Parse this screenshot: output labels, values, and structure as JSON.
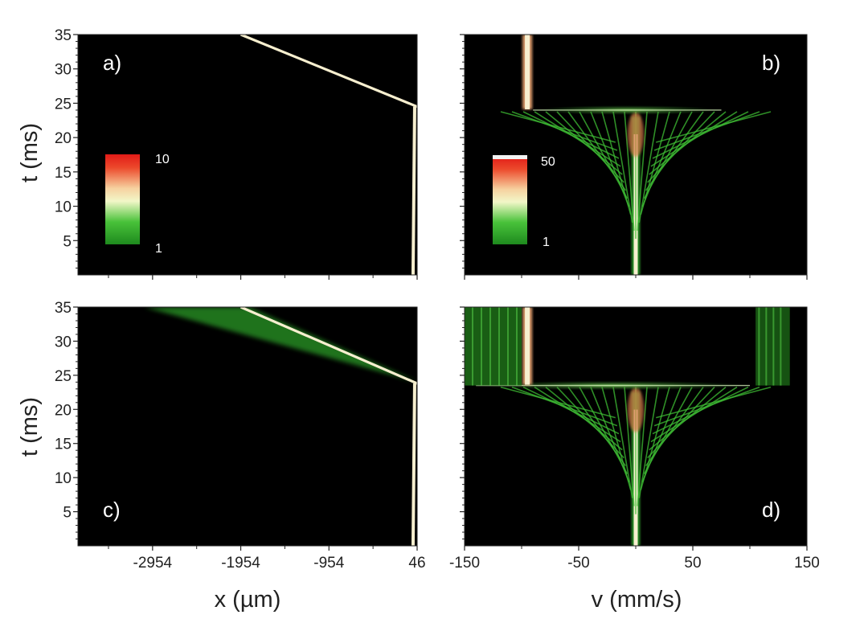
{
  "figure": {
    "ylabel": "t (ms)",
    "xlabel_left": "x (µm)",
    "xlabel_right": "v (mm/s)"
  },
  "colors": {
    "background": "#000000",
    "low": "#2fa82a",
    "mid": "#f4f4d0",
    "high": "#e8281c",
    "trace": "#f7efcf"
  },
  "chart_data": [
    {
      "panel": "a)",
      "type": "heatmap",
      "xlabel": "x (µm)",
      "ylabel": "t (ms)",
      "xlim": [
        -3800,
        46
      ],
      "ylim": [
        0,
        35
      ],
      "xticks": [
        -2954,
        -1954,
        -954,
        46
      ],
      "yticks": [
        5,
        10,
        15,
        20,
        25,
        30,
        35
      ],
      "colorbar": {
        "min": "1",
        "max": "10"
      },
      "features": {
        "static_trace_x": 0,
        "transition_t": 24.5,
        "drift_line": [
          [
            46,
            24.5
          ],
          [
            -1954,
            35
          ]
        ]
      }
    },
    {
      "panel": "b)",
      "type": "heatmap",
      "xlabel": "v (mm/s)",
      "ylabel": "t (ms)",
      "xlim": [
        -150,
        150
      ],
      "ylim": [
        0,
        35
      ],
      "xticks": [
        -150,
        -50,
        50,
        150
      ],
      "yticks": [
        5,
        10,
        15,
        20,
        25,
        30,
        35
      ],
      "colorbar": {
        "min": "1",
        "max": "50"
      },
      "features": {
        "trace_v": 0,
        "spread_peak_t": 24,
        "spread_range": [
          -90,
          75
        ],
        "jump_v": -95
      }
    },
    {
      "panel": "c)",
      "type": "heatmap",
      "xlabel": "x (µm)",
      "ylabel": "t (ms)",
      "xlim": [
        -3800,
        46
      ],
      "ylim": [
        0,
        35
      ],
      "xticks": [
        -2954,
        -1954,
        -954,
        46
      ],
      "yticks": [
        5,
        10,
        15,
        20,
        25,
        30,
        35
      ],
      "features": {
        "static_trace_x": 0,
        "transition_t": 23.8,
        "drift_line": [
          [
            46,
            23.8
          ],
          [
            -1954,
            35
          ]
        ]
      }
    },
    {
      "panel": "d)",
      "type": "heatmap",
      "xlabel": "v (mm/s)",
      "ylabel": "t (ms)",
      "xlim": [
        -150,
        150
      ],
      "ylim": [
        0,
        35
      ],
      "xticks": [
        -150,
        -50,
        50,
        150
      ],
      "yticks": [
        5,
        10,
        15,
        20,
        25,
        30,
        35
      ],
      "features": {
        "trace_v": 0,
        "spread_peak_t": 23.5,
        "spread_range": [
          -140,
          100
        ],
        "jump_v": -95
      }
    }
  ]
}
